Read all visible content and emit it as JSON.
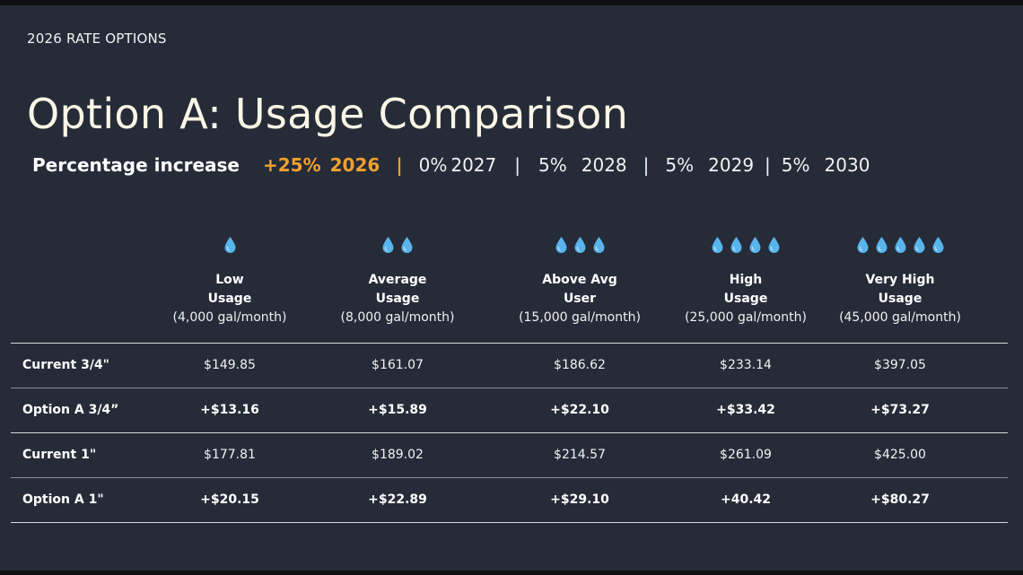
{
  "eyebrow": "2026 RATE OPTIONS",
  "title": "Option A: Usage Comparison",
  "increase": {
    "label": "Percentage increase",
    "segments": [
      {
        "pct": "+25%",
        "year": "2026",
        "highlight": true
      },
      {
        "pct": "0%",
        "year": "2027",
        "highlight": false
      },
      {
        "pct": "5%",
        "year": "2028",
        "highlight": false
      },
      {
        "pct": "5%",
        "year": "2029",
        "highlight": false
      },
      {
        "pct": "5%",
        "year": "2030",
        "highlight": false
      }
    ],
    "separator": "|"
  },
  "colors": {
    "background": "#262b38",
    "accent": "#f0a030",
    "title": "#fbf6e6",
    "drop": "#5ab4ec"
  },
  "icon": "water-drop-icon",
  "columns": [
    {
      "drops": 1,
      "line1": "Low",
      "line2": "Usage",
      "line3": "(4,000 gal/month)"
    },
    {
      "drops": 2,
      "line1": "Average",
      "line2": "Usage",
      "line3": "(8,000 gal/month)"
    },
    {
      "drops": 3,
      "line1": "Above Avg",
      "line2": "User",
      "line3": "(15,000 gal/month)"
    },
    {
      "drops": 4,
      "line1": "High",
      "line2": "Usage",
      "line3": "(25,000 gal/month)"
    },
    {
      "drops": 5,
      "line1": "Very High",
      "line2": "Usage",
      "line3": "(45,000 gal/month)"
    }
  ],
  "rows": [
    {
      "label": "Current 3/4\"",
      "bold": false,
      "values": [
        "$149.85",
        "$161.07",
        "$186.62",
        "$233.14",
        "$397.05"
      ]
    },
    {
      "label": "Option A 3/4”",
      "bold": true,
      "values": [
        "+$13.16",
        "+$15.89",
        "+$22.10",
        "+$33.42",
        "+$73.27"
      ]
    },
    {
      "label": "Current 1\"",
      "bold": false,
      "values": [
        "$177.81",
        "$189.02",
        "$214.57",
        "$261.09",
        "$425.00"
      ]
    },
    {
      "label": "Option A 1\"",
      "bold": true,
      "values": [
        "+$20.15",
        "+$22.89",
        "+$29.10",
        "+40.42",
        "+$80.27"
      ]
    }
  ]
}
